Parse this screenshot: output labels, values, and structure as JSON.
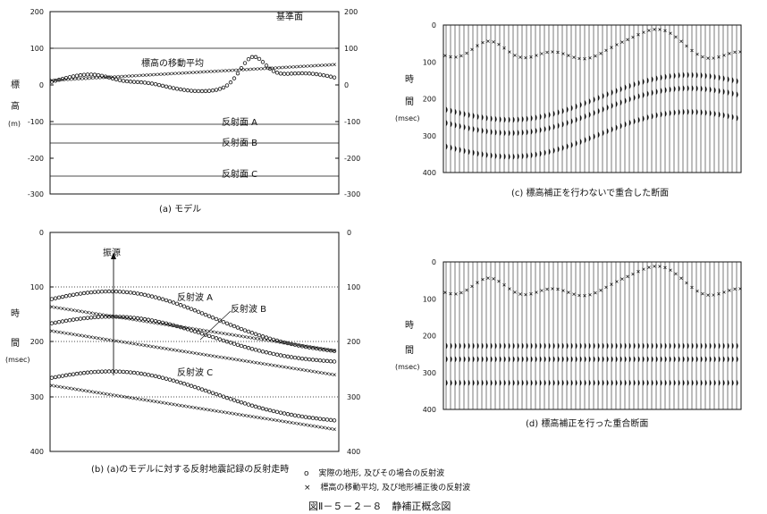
{
  "panel_a": {
    "y_ticks_left": [
      "200",
      "100",
      "0",
      "-100",
      "-200",
      "-300"
    ],
    "y_ticks_right": [
      "200",
      "100",
      "0",
      "-100",
      "-200",
      "-300"
    ],
    "ylabel_chars": [
      "標",
      "高",
      "(m)"
    ],
    "label_datum": "基準面",
    "label_moving_avg": "標高の移動平均",
    "label_reflA": "反射面 A",
    "label_reflB": "反射面 B",
    "label_reflC": "反射面 C",
    "caption": "(a) モデル"
  },
  "panel_b": {
    "y_ticks_left": [
      "0",
      "100",
      "200",
      "300",
      "400"
    ],
    "y_ticks_right": [
      "0",
      "100",
      "200",
      "300",
      "400"
    ],
    "ylabel_chars": [
      "時",
      "間",
      "(msec)"
    ],
    "label_source": "振源",
    "label_waveA": "反射波 A",
    "label_waveB": "反射波 B",
    "label_waveC": "反射波 C",
    "caption": "(b) (a)のモデルに対する反射地震記録の反射走時"
  },
  "panel_c": {
    "y_ticks": [
      "0",
      "100",
      "200",
      "300",
      "400"
    ],
    "ylabel_chars": [
      "時",
      "間",
      "(msec)"
    ],
    "caption": "(c) 標高補正を行わないで重合した断面"
  },
  "panel_d": {
    "y_ticks": [
      "0",
      "100",
      "200",
      "300",
      "400"
    ],
    "ylabel_chars": [
      "時",
      "間",
      "(msec)"
    ],
    "caption": "(d) 標高補正を行った重合断面"
  },
  "legend": {
    "circle_symbol": "o",
    "circle_text": "実際の地形, 及びその場合の反射波",
    "cross_symbol": "×",
    "cross_text": "標高の移動平均, 及び地形補正後の反射波"
  },
  "figure_title": "図Ⅱ－５－２－８　静補正概念図"
}
